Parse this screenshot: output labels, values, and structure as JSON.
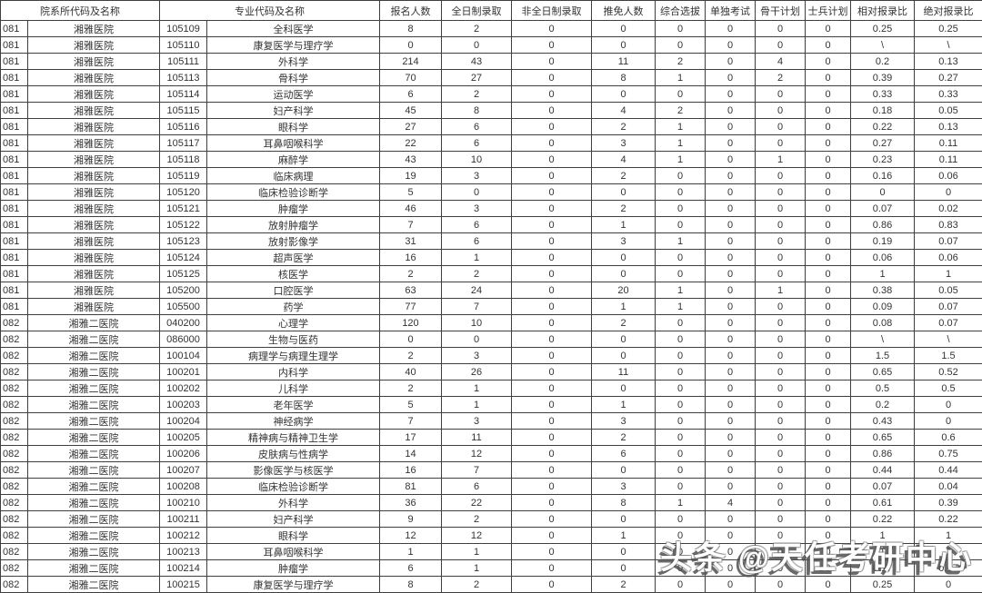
{
  "table": {
    "headers": {
      "dept_group": "院系所代码及名称",
      "major_group": "专业代码及名称",
      "cols": [
        "报名人数",
        "全日制录取",
        "非全日制录取",
        "推免人数",
        "综合选拔",
        "单独考试",
        "骨干计划",
        "士兵计划",
        "相对报录比",
        "绝对报录比"
      ]
    },
    "rows": [
      [
        "081",
        "湘雅医院",
        "105109",
        "全科医学",
        "8",
        "2",
        "0",
        "0",
        "0",
        "0",
        "0",
        "0",
        "0.25",
        "0.25"
      ],
      [
        "081",
        "湘雅医院",
        "105110",
        "康复医学与理疗学",
        "0",
        "0",
        "0",
        "0",
        "0",
        "0",
        "0",
        "0",
        "\\",
        "\\"
      ],
      [
        "081",
        "湘雅医院",
        "105111",
        "外科学",
        "214",
        "43",
        "0",
        "11",
        "2",
        "0",
        "4",
        "0",
        "0.2",
        "0.13"
      ],
      [
        "081",
        "湘雅医院",
        "105113",
        "骨科学",
        "70",
        "27",
        "0",
        "8",
        "1",
        "0",
        "2",
        "0",
        "0.39",
        "0.27"
      ],
      [
        "081",
        "湘雅医院",
        "105114",
        "运动医学",
        "6",
        "2",
        "0",
        "0",
        "0",
        "0",
        "0",
        "0",
        "0.33",
        "0.33"
      ],
      [
        "081",
        "湘雅医院",
        "105115",
        "妇产科学",
        "45",
        "8",
        "0",
        "4",
        "2",
        "0",
        "0",
        "0",
        "0.18",
        "0.05"
      ],
      [
        "081",
        "湘雅医院",
        "105116",
        "眼科学",
        "27",
        "6",
        "0",
        "2",
        "1",
        "0",
        "0",
        "0",
        "0.22",
        "0.13"
      ],
      [
        "081",
        "湘雅医院",
        "105117",
        "耳鼻咽喉科学",
        "22",
        "6",
        "0",
        "3",
        "1",
        "0",
        "0",
        "0",
        "0.27",
        "0.11"
      ],
      [
        "081",
        "湘雅医院",
        "105118",
        "麻醉学",
        "43",
        "10",
        "0",
        "4",
        "1",
        "0",
        "1",
        "0",
        "0.23",
        "0.11"
      ],
      [
        "081",
        "湘雅医院",
        "105119",
        "临床病理",
        "19",
        "3",
        "0",
        "2",
        "0",
        "0",
        "0",
        "0",
        "0.16",
        "0.06"
      ],
      [
        "081",
        "湘雅医院",
        "105120",
        "临床检验诊断学",
        "5",
        "0",
        "0",
        "0",
        "0",
        "0",
        "0",
        "0",
        "0",
        "0"
      ],
      [
        "081",
        "湘雅医院",
        "105121",
        "肿瘤学",
        "46",
        "3",
        "0",
        "2",
        "0",
        "0",
        "0",
        "0",
        "0.07",
        "0.02"
      ],
      [
        "081",
        "湘雅医院",
        "105122",
        "放射肿瘤学",
        "7",
        "6",
        "0",
        "1",
        "0",
        "0",
        "0",
        "0",
        "0.86",
        "0.83"
      ],
      [
        "081",
        "湘雅医院",
        "105123",
        "放射影像学",
        "31",
        "6",
        "0",
        "3",
        "1",
        "0",
        "0",
        "0",
        "0.19",
        "0.07"
      ],
      [
        "081",
        "湘雅医院",
        "105124",
        "超声医学",
        "16",
        "1",
        "0",
        "0",
        "0",
        "0",
        "0",
        "0",
        "0.06",
        "0.06"
      ],
      [
        "081",
        "湘雅医院",
        "105125",
        "核医学",
        "2",
        "2",
        "0",
        "0",
        "0",
        "0",
        "0",
        "0",
        "1",
        "1"
      ],
      [
        "081",
        "湘雅医院",
        "105200",
        "口腔医学",
        "63",
        "24",
        "0",
        "20",
        "1",
        "0",
        "1",
        "0",
        "0.38",
        "0.05"
      ],
      [
        "081",
        "湘雅医院",
        "105500",
        "药学",
        "77",
        "7",
        "0",
        "1",
        "1",
        "0",
        "0",
        "0",
        "0.09",
        "0.07"
      ],
      [
        "082",
        "湘雅二医院",
        "040200",
        "心理学",
        "120",
        "10",
        "0",
        "2",
        "0",
        "0",
        "0",
        "0",
        "0.08",
        "0.07"
      ],
      [
        "082",
        "湘雅二医院",
        "086000",
        "生物与医药",
        "0",
        "0",
        "0",
        "0",
        "0",
        "0",
        "0",
        "0",
        "\\",
        "\\"
      ],
      [
        "082",
        "湘雅二医院",
        "100104",
        "病理学与病理生理学",
        "2",
        "3",
        "0",
        "0",
        "0",
        "0",
        "0",
        "0",
        "1.5",
        "1.5"
      ],
      [
        "082",
        "湘雅二医院",
        "100201",
        "内科学",
        "40",
        "26",
        "0",
        "11",
        "0",
        "0",
        "0",
        "0",
        "0.65",
        "0.52"
      ],
      [
        "082",
        "湘雅二医院",
        "100202",
        "儿科学",
        "2",
        "1",
        "0",
        "0",
        "0",
        "0",
        "0",
        "0",
        "0.5",
        "0.5"
      ],
      [
        "082",
        "湘雅二医院",
        "100203",
        "老年医学",
        "5",
        "1",
        "0",
        "1",
        "0",
        "0",
        "0",
        "0",
        "0.2",
        "0"
      ],
      [
        "082",
        "湘雅二医院",
        "100204",
        "神经病学",
        "7",
        "3",
        "0",
        "3",
        "0",
        "0",
        "0",
        "0",
        "0.43",
        "0"
      ],
      [
        "082",
        "湘雅二医院",
        "100205",
        "精神病与精神卫生学",
        "17",
        "11",
        "0",
        "2",
        "0",
        "0",
        "0",
        "0",
        "0.65",
        "0.6"
      ],
      [
        "082",
        "湘雅二医院",
        "100206",
        "皮肤病与性病学",
        "14",
        "12",
        "0",
        "6",
        "0",
        "0",
        "0",
        "0",
        "0.86",
        "0.75"
      ],
      [
        "082",
        "湘雅二医院",
        "100207",
        "影像医学与核医学",
        "16",
        "7",
        "0",
        "0",
        "0",
        "0",
        "0",
        "0",
        "0.44",
        "0.44"
      ],
      [
        "082",
        "湘雅二医院",
        "100208",
        "临床检验诊断学",
        "81",
        "6",
        "0",
        "3",
        "0",
        "0",
        "0",
        "0",
        "0.07",
        "0.04"
      ],
      [
        "082",
        "湘雅二医院",
        "100210",
        "外科学",
        "36",
        "22",
        "0",
        "8",
        "1",
        "4",
        "0",
        "0",
        "0.61",
        "0.39"
      ],
      [
        "082",
        "湘雅二医院",
        "100211",
        "妇产科学",
        "9",
        "2",
        "0",
        "0",
        "0",
        "0",
        "0",
        "0",
        "0.22",
        "0.22"
      ],
      [
        "082",
        "湘雅二医院",
        "100212",
        "眼科学",
        "12",
        "12",
        "0",
        "1",
        "0",
        "0",
        "0",
        "0",
        "1",
        "1"
      ],
      [
        "082",
        "湘雅二医院",
        "100213",
        "耳鼻咽喉科学",
        "1",
        "1",
        "0",
        "0",
        "0",
        "0",
        "0",
        "0",
        "1",
        "1"
      ],
      [
        "082",
        "湘雅二医院",
        "100214",
        "肿瘤学",
        "6",
        "1",
        "0",
        "0",
        "0",
        "0",
        "0",
        "0",
        "0.17",
        "0.17"
      ],
      [
        "082",
        "湘雅二医院",
        "100215",
        "康复医学与理疗学",
        "8",
        "2",
        "0",
        "2",
        "0",
        "0",
        "0",
        "0",
        "0.25",
        "0"
      ]
    ]
  },
  "watermark": {
    "text": "头条 @天任考研中心",
    "text_color": "#ffffff",
    "shadow_color": "#505050"
  },
  "colors": {
    "border": "#3f3f3f",
    "text": "#333333",
    "background": "#ffffff"
  }
}
